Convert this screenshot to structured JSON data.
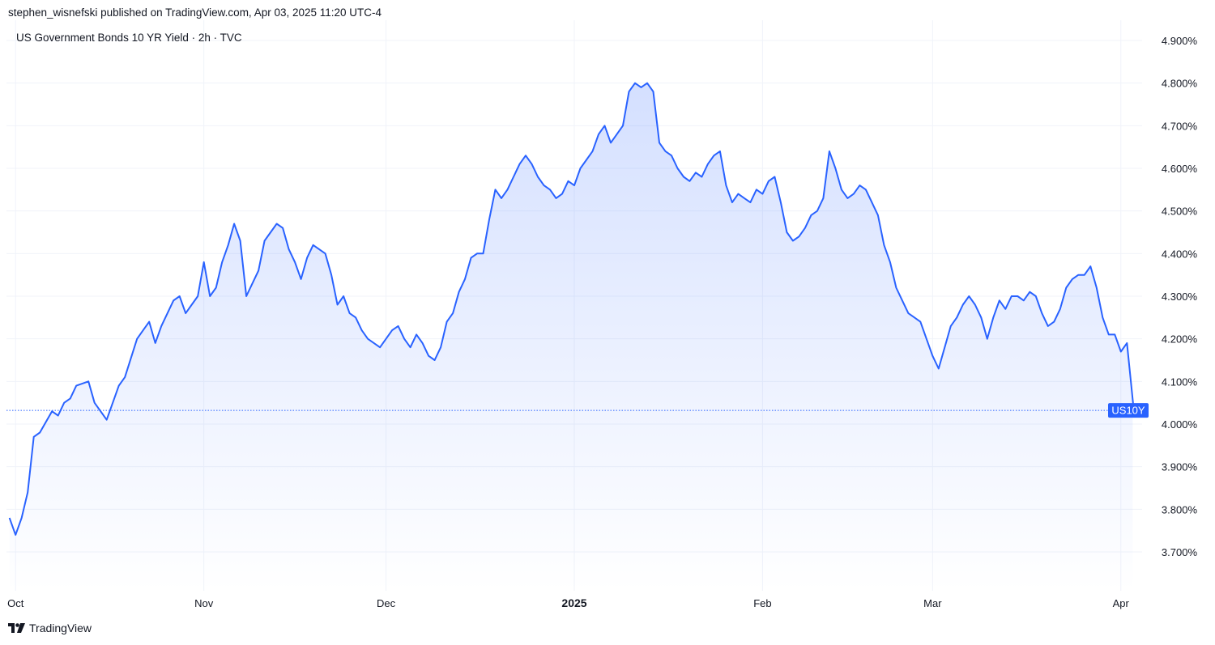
{
  "header": {
    "published_text": "stephen_wisnefski published on TradingView.com, Apr 03, 2025 11:20 UTC-4"
  },
  "footer": {
    "brand_text": "TradingView",
    "brand_icon": "tradingview-logo-icon"
  },
  "colors": {
    "line": "#2962ff",
    "grid": "#f0f3fa",
    "text": "#131722",
    "badge": "#2962ff"
  },
  "chart_data": {
    "type": "area",
    "title": "US Government Bonds 10 YR Yield · 2h · TVC",
    "symbol_label": "US10Y",
    "last_value": 4.032,
    "ylim": [
      3.64,
      4.95
    ],
    "xlim": [
      "2024-09-30",
      "2025-04-05"
    ],
    "y_ticks": [
      "4.900%",
      "4.800%",
      "4.700%",
      "4.600%",
      "4.500%",
      "4.400%",
      "4.300%",
      "4.200%",
      "4.100%",
      "4.000%",
      "3.900%",
      "3.800%",
      "3.700%"
    ],
    "x_ticks": [
      {
        "label": "Oct",
        "date": "2024-10-01",
        "bold": false
      },
      {
        "label": "Nov",
        "date": "2024-11-01",
        "bold": false
      },
      {
        "label": "Dec",
        "date": "2024-12-01",
        "bold": false
      },
      {
        "label": "2025",
        "date": "2025-01-01",
        "bold": true
      },
      {
        "label": "Feb",
        "date": "2025-02-01",
        "bold": false
      },
      {
        "label": "Mar",
        "date": "2025-03-01",
        "bold": false
      },
      {
        "label": "Apr",
        "date": "2025-04-01",
        "bold": false
      }
    ],
    "grid": true,
    "points": [
      [
        "2024-09-30",
        3.78
      ],
      [
        "2024-10-01",
        3.74
      ],
      [
        "2024-10-02",
        3.78
      ],
      [
        "2024-10-03",
        3.84
      ],
      [
        "2024-10-04",
        3.97
      ],
      [
        "2024-10-05",
        3.98
      ],
      [
        "2024-10-07",
        4.03
      ],
      [
        "2024-10-08",
        4.02
      ],
      [
        "2024-10-09",
        4.05
      ],
      [
        "2024-10-10",
        4.06
      ],
      [
        "2024-10-11",
        4.09
      ],
      [
        "2024-10-13",
        4.1
      ],
      [
        "2024-10-14",
        4.05
      ],
      [
        "2024-10-15",
        4.03
      ],
      [
        "2024-10-16",
        4.01
      ],
      [
        "2024-10-17",
        4.05
      ],
      [
        "2024-10-18",
        4.09
      ],
      [
        "2024-10-19",
        4.11
      ],
      [
        "2024-10-21",
        4.2
      ],
      [
        "2024-10-22",
        4.22
      ],
      [
        "2024-10-23",
        4.24
      ],
      [
        "2024-10-24",
        4.19
      ],
      [
        "2024-10-25",
        4.23
      ],
      [
        "2024-10-27",
        4.29
      ],
      [
        "2024-10-28",
        4.3
      ],
      [
        "2024-10-29",
        4.26
      ],
      [
        "2024-10-30",
        4.28
      ],
      [
        "2024-10-31",
        4.3
      ],
      [
        "2024-11-01",
        4.38
      ],
      [
        "2024-11-02",
        4.3
      ],
      [
        "2024-11-03",
        4.32
      ],
      [
        "2024-11-04",
        4.38
      ],
      [
        "2024-11-05",
        4.42
      ],
      [
        "2024-11-06",
        4.47
      ],
      [
        "2024-11-07",
        4.43
      ],
      [
        "2024-11-08",
        4.3
      ],
      [
        "2024-11-09",
        4.33
      ],
      [
        "2024-11-10",
        4.36
      ],
      [
        "2024-11-11",
        4.43
      ],
      [
        "2024-11-12",
        4.45
      ],
      [
        "2024-11-13",
        4.47
      ],
      [
        "2024-11-14",
        4.46
      ],
      [
        "2024-11-15",
        4.41
      ],
      [
        "2024-11-16",
        4.38
      ],
      [
        "2024-11-17",
        4.34
      ],
      [
        "2024-11-18",
        4.39
      ],
      [
        "2024-11-19",
        4.42
      ],
      [
        "2024-11-20",
        4.41
      ],
      [
        "2024-11-21",
        4.4
      ],
      [
        "2024-11-22",
        4.35
      ],
      [
        "2024-11-23",
        4.28
      ],
      [
        "2024-11-24",
        4.3
      ],
      [
        "2024-11-25",
        4.26
      ],
      [
        "2024-11-26",
        4.25
      ],
      [
        "2024-11-27",
        4.22
      ],
      [
        "2024-11-28",
        4.2
      ],
      [
        "2024-11-30",
        4.18
      ],
      [
        "2024-12-02",
        4.22
      ],
      [
        "2024-12-03",
        4.23
      ],
      [
        "2024-12-04",
        4.2
      ],
      [
        "2024-12-05",
        4.18
      ],
      [
        "2024-12-06",
        4.21
      ],
      [
        "2024-12-07",
        4.19
      ],
      [
        "2024-12-08",
        4.16
      ],
      [
        "2024-12-09",
        4.15
      ],
      [
        "2024-12-10",
        4.18
      ],
      [
        "2024-12-11",
        4.24
      ],
      [
        "2024-12-12",
        4.26
      ],
      [
        "2024-12-13",
        4.31
      ],
      [
        "2024-12-14",
        4.34
      ],
      [
        "2024-12-15",
        4.39
      ],
      [
        "2024-12-16",
        4.4
      ],
      [
        "2024-12-17",
        4.4
      ],
      [
        "2024-12-18",
        4.48
      ],
      [
        "2024-12-19",
        4.55
      ],
      [
        "2024-12-20",
        4.53
      ],
      [
        "2024-12-21",
        4.55
      ],
      [
        "2024-12-22",
        4.58
      ],
      [
        "2024-12-23",
        4.61
      ],
      [
        "2024-12-24",
        4.63
      ],
      [
        "2024-12-25",
        4.61
      ],
      [
        "2024-12-26",
        4.58
      ],
      [
        "2024-12-27",
        4.56
      ],
      [
        "2024-12-28",
        4.55
      ],
      [
        "2024-12-29",
        4.53
      ],
      [
        "2024-12-30",
        4.54
      ],
      [
        "2024-12-31",
        4.57
      ],
      [
        "2025-01-01",
        4.56
      ],
      [
        "2025-01-02",
        4.6
      ],
      [
        "2025-01-03",
        4.62
      ],
      [
        "2025-01-04",
        4.64
      ],
      [
        "2025-01-05",
        4.68
      ],
      [
        "2025-01-06",
        4.7
      ],
      [
        "2025-01-07",
        4.66
      ],
      [
        "2025-01-08",
        4.68
      ],
      [
        "2025-01-09",
        4.7
      ],
      [
        "2025-01-10",
        4.78
      ],
      [
        "2025-01-11",
        4.8
      ],
      [
        "2025-01-12",
        4.79
      ],
      [
        "2025-01-13",
        4.8
      ],
      [
        "2025-01-14",
        4.78
      ],
      [
        "2025-01-15",
        4.66
      ],
      [
        "2025-01-16",
        4.64
      ],
      [
        "2025-01-17",
        4.63
      ],
      [
        "2025-01-18",
        4.6
      ],
      [
        "2025-01-19",
        4.58
      ],
      [
        "2025-01-20",
        4.57
      ],
      [
        "2025-01-21",
        4.59
      ],
      [
        "2025-01-22",
        4.58
      ],
      [
        "2025-01-23",
        4.61
      ],
      [
        "2025-01-24",
        4.63
      ],
      [
        "2025-01-25",
        4.64
      ],
      [
        "2025-01-26",
        4.56
      ],
      [
        "2025-01-27",
        4.52
      ],
      [
        "2025-01-28",
        4.54
      ],
      [
        "2025-01-29",
        4.53
      ],
      [
        "2025-01-30",
        4.52
      ],
      [
        "2025-01-31",
        4.55
      ],
      [
        "2025-02-01",
        4.54
      ],
      [
        "2025-02-02",
        4.57
      ],
      [
        "2025-02-03",
        4.58
      ],
      [
        "2025-02-04",
        4.52
      ],
      [
        "2025-02-05",
        4.45
      ],
      [
        "2025-02-06",
        4.43
      ],
      [
        "2025-02-07",
        4.44
      ],
      [
        "2025-02-08",
        4.46
      ],
      [
        "2025-02-09",
        4.49
      ],
      [
        "2025-02-10",
        4.5
      ],
      [
        "2025-02-11",
        4.53
      ],
      [
        "2025-02-12",
        4.64
      ],
      [
        "2025-02-13",
        4.6
      ],
      [
        "2025-02-14",
        4.55
      ],
      [
        "2025-02-15",
        4.53
      ],
      [
        "2025-02-16",
        4.54
      ],
      [
        "2025-02-17",
        4.56
      ],
      [
        "2025-02-18",
        4.55
      ],
      [
        "2025-02-19",
        4.52
      ],
      [
        "2025-02-20",
        4.49
      ],
      [
        "2025-02-21",
        4.42
      ],
      [
        "2025-02-22",
        4.38
      ],
      [
        "2025-02-23",
        4.32
      ],
      [
        "2025-02-24",
        4.29
      ],
      [
        "2025-02-25",
        4.26
      ],
      [
        "2025-02-26",
        4.25
      ],
      [
        "2025-02-27",
        4.24
      ],
      [
        "2025-02-28",
        4.2
      ],
      [
        "2025-03-01",
        4.16
      ],
      [
        "2025-03-02",
        4.13
      ],
      [
        "2025-03-03",
        4.18
      ],
      [
        "2025-03-04",
        4.23
      ],
      [
        "2025-03-05",
        4.25
      ],
      [
        "2025-03-06",
        4.28
      ],
      [
        "2025-03-07",
        4.3
      ],
      [
        "2025-03-08",
        4.28
      ],
      [
        "2025-03-09",
        4.25
      ],
      [
        "2025-03-10",
        4.2
      ],
      [
        "2025-03-11",
        4.25
      ],
      [
        "2025-03-12",
        4.29
      ],
      [
        "2025-03-13",
        4.27
      ],
      [
        "2025-03-14",
        4.3
      ],
      [
        "2025-03-15",
        4.3
      ],
      [
        "2025-03-16",
        4.29
      ],
      [
        "2025-03-17",
        4.31
      ],
      [
        "2025-03-18",
        4.3
      ],
      [
        "2025-03-19",
        4.26
      ],
      [
        "2025-03-20",
        4.23
      ],
      [
        "2025-03-21",
        4.24
      ],
      [
        "2025-03-22",
        4.27
      ],
      [
        "2025-03-23",
        4.32
      ],
      [
        "2025-03-24",
        4.34
      ],
      [
        "2025-03-25",
        4.35
      ],
      [
        "2025-03-26",
        4.35
      ],
      [
        "2025-03-27",
        4.37
      ],
      [
        "2025-03-28",
        4.32
      ],
      [
        "2025-03-29",
        4.25
      ],
      [
        "2025-03-30",
        4.21
      ],
      [
        "2025-03-31",
        4.21
      ],
      [
        "2025-04-01",
        4.17
      ],
      [
        "2025-04-02",
        4.19
      ],
      [
        "2025-04-03",
        4.05
      ],
      [
        "2025-04-03T11:00",
        4.03
      ]
    ]
  }
}
